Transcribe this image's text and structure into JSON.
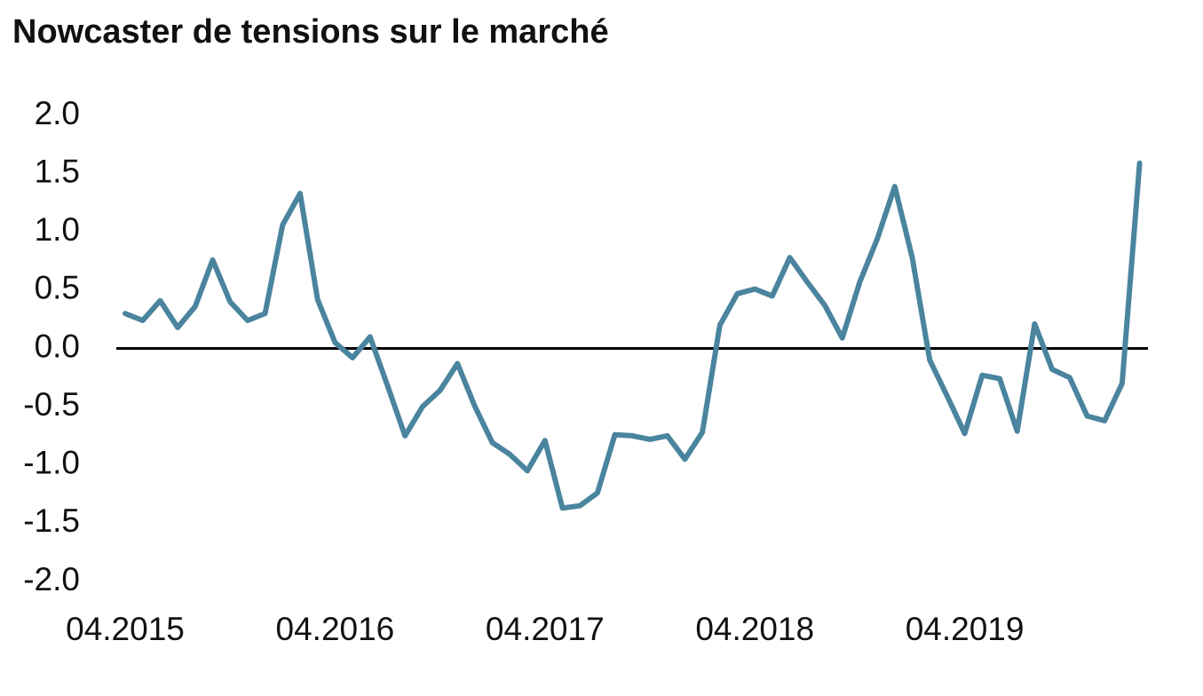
{
  "chart_data": {
    "type": "line",
    "title": "Nowcaster de tensions sur le marché",
    "categories": [
      "04.2015",
      null,
      null,
      null,
      null,
      null,
      null,
      null,
      null,
      null,
      null,
      null,
      "04.2016",
      null,
      null,
      null,
      null,
      null,
      null,
      null,
      null,
      null,
      null,
      null,
      "04.2017",
      null,
      null,
      null,
      null,
      null,
      null,
      null,
      null,
      null,
      null,
      null,
      "04.2018",
      null,
      null,
      null,
      null,
      null,
      null,
      null,
      null,
      null,
      null,
      null,
      "04.2019",
      null,
      null,
      null,
      null,
      null,
      null,
      null,
      null,
      null,
      null
    ],
    "series": [
      {
        "color": "#4a849e",
        "values": [
          0.3,
          0.24,
          0.41,
          0.18,
          0.36,
          0.76,
          0.4,
          0.24,
          0.3,
          1.06,
          1.33,
          0.42,
          0.05,
          -0.08,
          0.1,
          -0.32,
          -0.75,
          -0.5,
          -0.36,
          -0.13,
          -0.5,
          -0.81,
          -0.91,
          -1.05,
          -0.79,
          -1.37,
          -1.35,
          -1.24,
          -0.74,
          -0.75,
          -0.78,
          -0.75,
          -0.95,
          -0.72,
          0.2,
          0.47,
          0.51,
          0.45,
          0.78,
          0.57,
          0.37,
          0.09,
          0.57,
          0.94,
          1.39,
          0.78,
          -0.1,
          -0.41,
          -0.73,
          -0.23,
          -0.26,
          -0.71,
          0.21,
          -0.18,
          -0.25,
          -0.58,
          -0.62,
          -0.3,
          1.59
        ]
      }
    ],
    "ylim": [
      -2,
      2
    ],
    "yticks": [
      {
        "value": 2,
        "label": "2.0"
      },
      {
        "value": 1.5,
        "label": "1.5"
      },
      {
        "value": 1,
        "label": "1.0"
      },
      {
        "value": 0.5,
        "label": "0.5"
      },
      {
        "value": 0,
        "label": "0.0"
      },
      {
        "value": -0.5,
        "label": "-0.5"
      },
      {
        "value": -1,
        "label": "-1.0"
      },
      {
        "value": -1.5,
        "label": "-1.5"
      },
      {
        "value": -2,
        "label": "-2.0"
      }
    ],
    "zero_line": true
  }
}
